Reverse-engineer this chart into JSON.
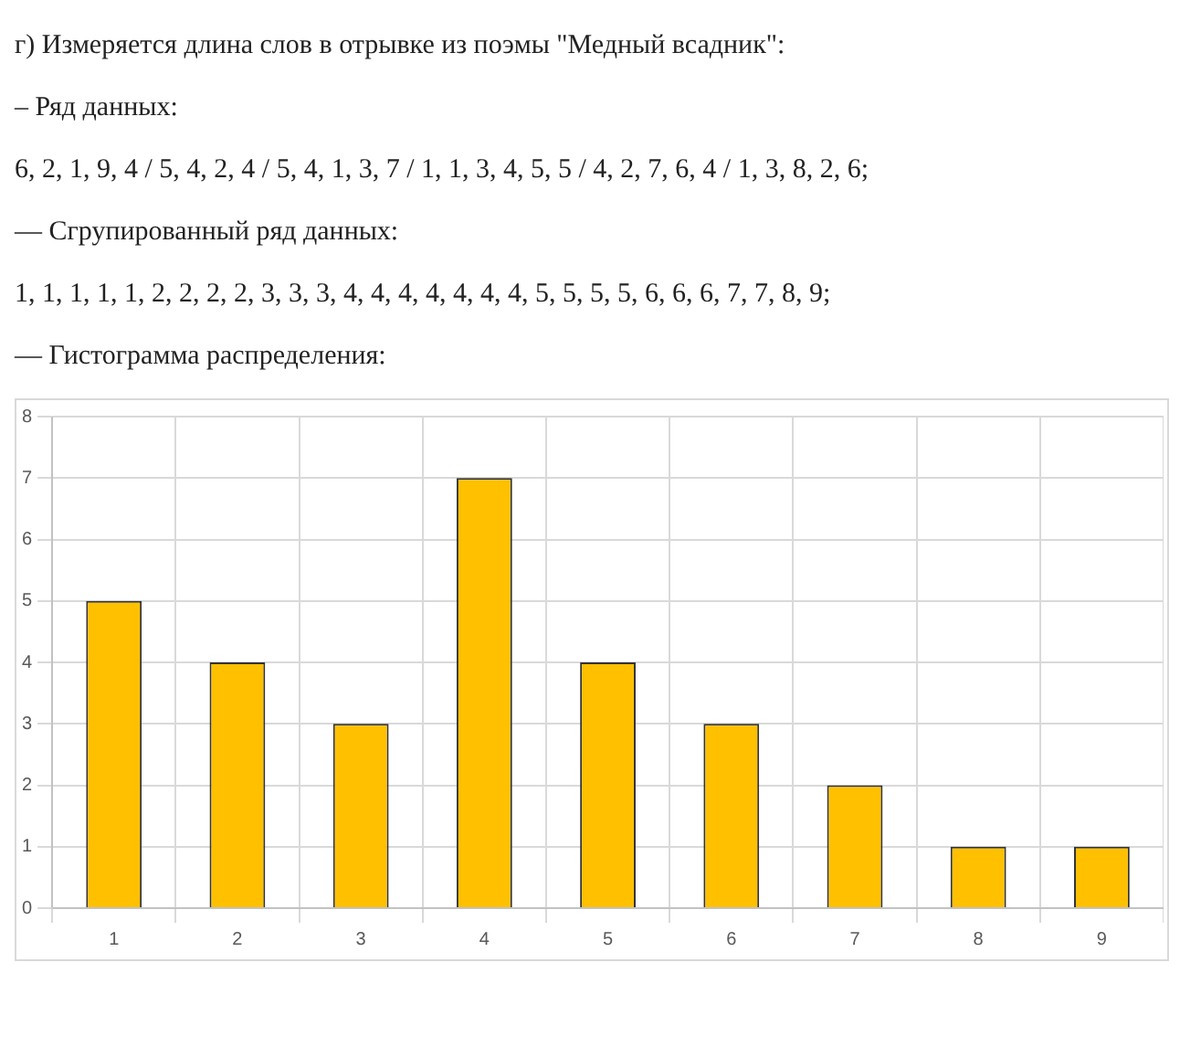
{
  "chart_data": {
    "type": "bar",
    "title": "г) Измеряется длина слов в отрывке из поэмы \"Медный всадник\":",
    "annotations": [
      "– Ряд данных:",
      "6, 2, 1, 9, 4 / 5, 4, 2, 4 / 5, 4, 1, 3, 7 / 1, 1, 3, 4, 5, 5 / 4, 2, 7, 6, 4 / 1, 3, 8, 2, 6;",
      "— Сгрупированный ряд данных:",
      "1, 1, 1, 1, 1, 2, 2, 2, 2, 3, 3, 3, 4, 4, 4, 4, 4, 4, 4, 5, 5, 5, 5, 6, 6, 6, 7, 7, 8, 9;",
      "— Гистограмма распределения:"
    ],
    "categories": [
      "1",
      "2",
      "3",
      "4",
      "5",
      "6",
      "7",
      "8",
      "9"
    ],
    "values": [
      5,
      4,
      3,
      7,
      4,
      3,
      2,
      1,
      1
    ],
    "color": "#ffc000",
    "ylim": [
      0,
      8
    ],
    "yticks": [
      0,
      1,
      2,
      3,
      4,
      5,
      6,
      7,
      8
    ],
    "grid": true
  }
}
